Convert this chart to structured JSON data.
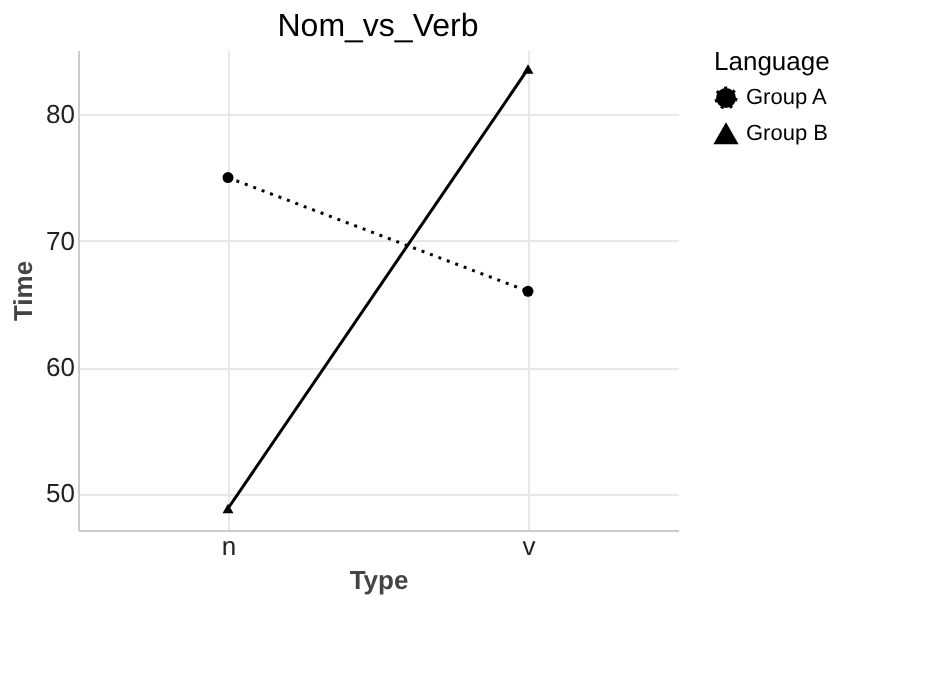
{
  "chart_data": {
    "type": "line",
    "title": "Nom_vs_Verb",
    "xlabel": "Type",
    "ylabel": "Time",
    "legend_title": "Language",
    "categories": [
      "n",
      "v"
    ],
    "series": [
      {
        "name": "Group A",
        "color": "#000000",
        "values": [
          75.0,
          66.0
        ],
        "line_style": "dotted",
        "marker": "circle"
      },
      {
        "name": "Group B",
        "color": "#000000",
        "values": [
          48.8,
          83.6
        ],
        "line_style": "solid",
        "marker": "triangle"
      }
    ],
    "ylim": [
      47.1,
      85.1
    ],
    "yticks": [
      50,
      60,
      70,
      80
    ],
    "grid": true,
    "legend": "right"
  }
}
